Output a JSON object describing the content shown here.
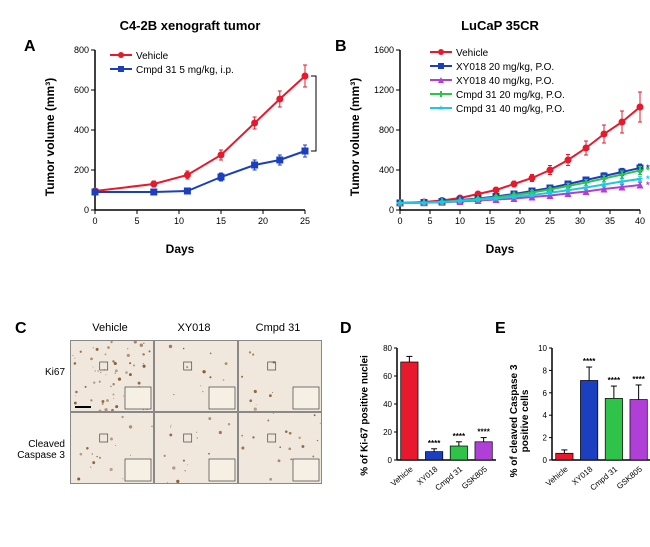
{
  "panelA": {
    "label": "A",
    "title": "C4-2B xenograft tumor",
    "ylabel": "Tumor volume (mm³)",
    "xlabel": "Days",
    "ylim": [
      0,
      800
    ],
    "ytick_step": 200,
    "xlim": [
      0,
      25
    ],
    "xtick_step": 5,
    "series": [
      {
        "name": "Vehicle",
        "color": "#e8192c",
        "marker": "circle",
        "x": [
          0,
          7,
          11,
          15,
          19,
          22,
          25
        ],
        "y": [
          95,
          130,
          175,
          275,
          435,
          555,
          670
        ],
        "err": [
          10,
          15,
          20,
          25,
          30,
          40,
          55
        ]
      },
      {
        "name": "Cmpd 31 5 mg/kg, i.p.",
        "color": "#1b3fbf",
        "marker": "square",
        "x": [
          0,
          7,
          11,
          15,
          19,
          22,
          25
        ],
        "y": [
          90,
          90,
          95,
          165,
          225,
          250,
          295
        ],
        "err": [
          10,
          10,
          15,
          20,
          25,
          25,
          30
        ]
      }
    ],
    "sig_text": "****"
  },
  "panelB": {
    "label": "B",
    "title": "LuCaP 35CR",
    "ylabel": "Tumor volume (mm³)",
    "xlabel": "Days",
    "ylim": [
      0,
      1600
    ],
    "ytick_step": 400,
    "xlim": [
      0,
      40
    ],
    "xtick_step": 5,
    "series": [
      {
        "name": "Vehicle",
        "color": "#e8192c",
        "marker": "circle",
        "x": [
          0,
          4,
          7,
          10,
          13,
          16,
          19,
          22,
          25,
          28,
          31,
          34,
          37,
          40
        ],
        "y": [
          70,
          80,
          95,
          120,
          160,
          200,
          260,
          320,
          400,
          500,
          620,
          760,
          880,
          1030
        ],
        "err": [
          10,
          10,
          12,
          15,
          18,
          22,
          28,
          35,
          45,
          55,
          70,
          90,
          110,
          150
        ]
      },
      {
        "name": "XY018 20 mg/kg, P.O.",
        "color": "#1b3fbf",
        "marker": "square",
        "x": [
          0,
          4,
          7,
          10,
          13,
          16,
          19,
          22,
          25,
          28,
          31,
          34,
          37,
          40
        ],
        "y": [
          70,
          75,
          85,
          100,
          115,
          135,
          160,
          190,
          220,
          260,
          300,
          340,
          380,
          420
        ],
        "err": [
          10,
          10,
          10,
          12,
          14,
          16,
          18,
          20,
          22,
          25,
          28,
          32,
          36,
          40
        ],
        "sig": "**"
      },
      {
        "name": "XY018 40 mg/kg, P.O.",
        "color": "#b03fd8",
        "marker": "triangle",
        "x": [
          0,
          4,
          7,
          10,
          13,
          16,
          19,
          22,
          25,
          28,
          31,
          34,
          37,
          40
        ],
        "y": [
          70,
          72,
          78,
          85,
          95,
          105,
          115,
          130,
          145,
          165,
          185,
          210,
          230,
          250
        ],
        "err": [
          8,
          8,
          10,
          10,
          12,
          12,
          14,
          14,
          16,
          18,
          20,
          22,
          24,
          26
        ],
        "sig": "***"
      },
      {
        "name": "Cmpd 31 20 mg/kg, P.O.",
        "color": "#2fc34a",
        "marker": "plus",
        "x": [
          0,
          4,
          7,
          10,
          13,
          16,
          19,
          22,
          25,
          28,
          31,
          34,
          37,
          40
        ],
        "y": [
          70,
          74,
          82,
          95,
          110,
          128,
          150,
          175,
          205,
          240,
          275,
          315,
          355,
          395
        ],
        "err": [
          10,
          10,
          10,
          12,
          14,
          16,
          18,
          20,
          22,
          25,
          28,
          32,
          36,
          40
        ],
        "sig": "**"
      },
      {
        "name": "Cmpd 31 40 mg/kg, P.O.",
        "color": "#1ec8e0",
        "marker": "star",
        "x": [
          0,
          4,
          7,
          10,
          13,
          16,
          19,
          22,
          25,
          28,
          31,
          34,
          37,
          40
        ],
        "y": [
          70,
          73,
          80,
          90,
          102,
          115,
          132,
          150,
          172,
          198,
          225,
          255,
          285,
          310
        ],
        "err": [
          8,
          8,
          10,
          10,
          12,
          12,
          14,
          16,
          18,
          20,
          22,
          24,
          26,
          28
        ],
        "sig": "***"
      }
    ]
  },
  "panelC": {
    "label": "C",
    "columns": [
      "Vehicle",
      "XY018",
      "Cmpd 31"
    ],
    "rows": [
      "Ki67",
      "Cleaved\nCaspase 3"
    ]
  },
  "panelD": {
    "label": "D",
    "ylabel": "% of Ki-67 positive nuclei",
    "ylim": [
      0,
      80
    ],
    "ytick_step": 20,
    "categories": [
      "Vehicle",
      "XY018",
      "Cmpd 31",
      "GSK805"
    ],
    "values": [
      70,
      6,
      10,
      13
    ],
    "err": [
      4,
      2,
      3,
      3
    ],
    "colors": [
      "#e8192c",
      "#1b3fbf",
      "#2fc34a",
      "#b03fd8"
    ],
    "sig": [
      "",
      "****",
      "****",
      "****"
    ]
  },
  "panelE": {
    "label": "E",
    "ylabel": "% of cleaved Caspase 3\npositive cells",
    "ylim": [
      0,
      10
    ],
    "ytick_step": 2,
    "categories": [
      "Vehicle",
      "XY018",
      "Cmpd 31",
      "GSK805"
    ],
    "values": [
      0.6,
      7.1,
      5.5,
      5.4
    ],
    "err": [
      0.3,
      1.2,
      1.1,
      1.3
    ],
    "colors": [
      "#e8192c",
      "#1b3fbf",
      "#2fc34a",
      "#b03fd8"
    ],
    "sig": [
      "",
      "****",
      "****",
      "****"
    ]
  }
}
